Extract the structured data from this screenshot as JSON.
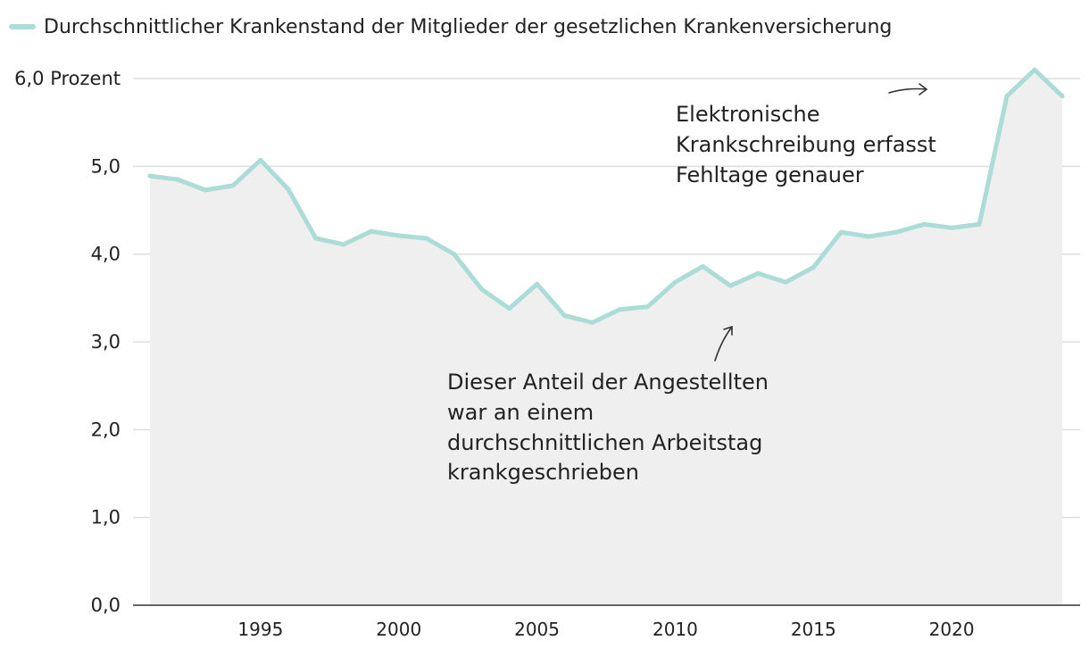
{
  "colors": {
    "series": "#abdcd5",
    "area": "#efefef",
    "grid": "#dedede",
    "axis": "#333333",
    "text": "#222222"
  },
  "chart_data": {
    "type": "area",
    "title": "",
    "xlabel": "",
    "ylabel": "",
    "ylim": [
      0,
      6
    ],
    "xlim": [
      1991,
      2024
    ],
    "grid": true,
    "legend_position": "top-left",
    "y_ticks": [
      {
        "value": 0,
        "label": "0,0"
      },
      {
        "value": 1,
        "label": "1,0"
      },
      {
        "value": 2,
        "label": "2,0"
      },
      {
        "value": 3,
        "label": "3,0"
      },
      {
        "value": 4,
        "label": "4,0"
      },
      {
        "value": 5,
        "label": "5,0"
      },
      {
        "value": 6,
        "label": "6,0 Prozent"
      }
    ],
    "x_ticks": [
      {
        "value": 1995,
        "label": "1995"
      },
      {
        "value": 2000,
        "label": "2000"
      },
      {
        "value": 2005,
        "label": "2005"
      },
      {
        "value": 2010,
        "label": "2010"
      },
      {
        "value": 2015,
        "label": "2015"
      },
      {
        "value": 2020,
        "label": "2020"
      }
    ],
    "series": [
      {
        "name": "Durchschnittlicher Krankenstand der Mitglieder der gesetzlichen Krankenversicherung",
        "x": [
          1991,
          1992,
          1993,
          1994,
          1995,
          1996,
          1997,
          1998,
          1999,
          2000,
          2001,
          2002,
          2003,
          2004,
          2005,
          2006,
          2007,
          2008,
          2009,
          2010,
          2011,
          2012,
          2013,
          2014,
          2015,
          2016,
          2017,
          2018,
          2019,
          2020,
          2021,
          2022,
          2023,
          2024
        ],
        "values": [
          4.89,
          4.85,
          4.73,
          4.78,
          5.07,
          4.74,
          4.18,
          4.11,
          4.26,
          4.21,
          4.18,
          4.0,
          3.6,
          3.38,
          3.66,
          3.3,
          3.22,
          3.37,
          3.4,
          3.68,
          3.86,
          3.64,
          3.78,
          3.68,
          3.85,
          4.25,
          4.2,
          4.25,
          4.34,
          4.3,
          4.34,
          5.8,
          6.1,
          5.8
        ]
      }
    ],
    "annotations": [
      {
        "lines": [
          "Elektronische",
          "Krankschreibung erfasst",
          "Fehltage genauer"
        ]
      },
      {
        "lines": [
          "Dieser Anteil der Angestellten",
          "war an einem",
          "durchschnittlichen Arbeitstag",
          "krankgeschrieben"
        ]
      }
    ]
  }
}
